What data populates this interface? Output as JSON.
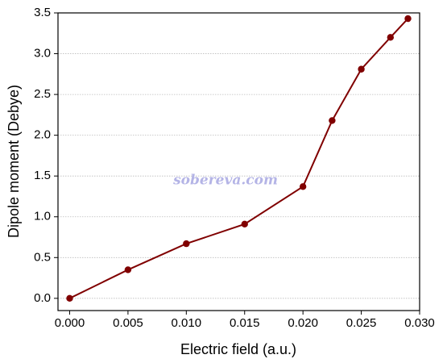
{
  "chart_data": {
    "type": "line",
    "xlabel": "Electric field (a.u.)",
    "ylabel": "Dipole moment (Debye)",
    "annotation": "sobereva.com",
    "x": [
      0,
      0.005,
      0.01,
      0.015,
      0.02,
      0.0225,
      0.025,
      0.0275,
      0.029
    ],
    "series": [
      {
        "name": "Dipole moment",
        "color": "#800000",
        "values": [
          0,
          0.35,
          0.67,
          0.91,
          1.37,
          2.18,
          2.81,
          3.2,
          3.43
        ]
      }
    ],
    "xlim": [
      -0.001,
      0.03
    ],
    "ylim": [
      -0.15,
      3.5
    ],
    "xticks": [
      {
        "value": 0,
        "label": "0.000"
      },
      {
        "value": 0.005,
        "label": "0.005"
      },
      {
        "value": 0.01,
        "label": "0.010"
      },
      {
        "value": 0.015,
        "label": "0.015"
      },
      {
        "value": 0.02,
        "label": "0.020"
      },
      {
        "value": 0.025,
        "label": "0.025"
      },
      {
        "value": 0.03,
        "label": "0.030"
      }
    ],
    "yticks": [
      {
        "value": 0,
        "label": "0.0"
      },
      0.5,
      {
        "value": 1,
        "label": "1.0"
      },
      1.5,
      {
        "value": 2,
        "label": "2.0"
      },
      2.5,
      {
        "value": 3,
        "label": "3.0"
      },
      3.5
    ],
    "grid": true
  }
}
